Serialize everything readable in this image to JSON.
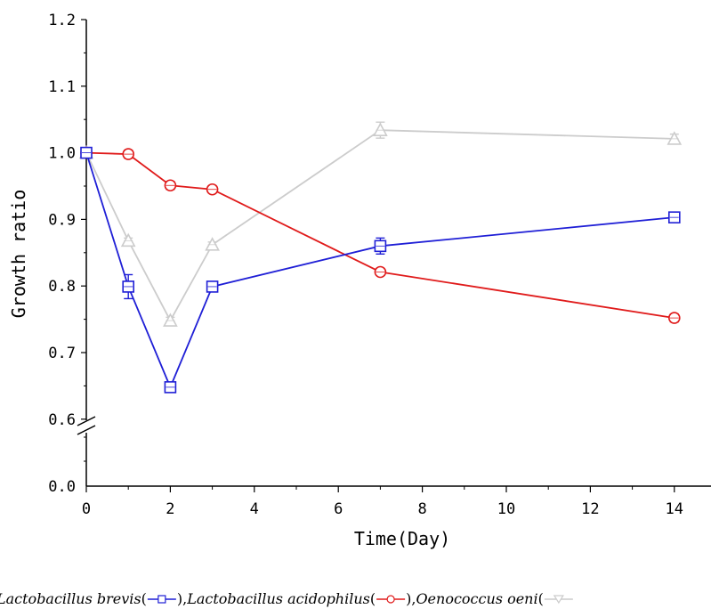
{
  "chart_data": {
    "type": "line",
    "xlabel": "Time(Day)",
    "ylabel": "Growth ratio",
    "xlim": [
      0,
      14.8
    ],
    "x_ticks": [
      "0",
      "2",
      "4",
      "6",
      "8",
      "10",
      "12",
      "14"
    ],
    "y_ticks_upper": [
      "0.6",
      "0.7",
      "0.8",
      "0.9",
      "1.0",
      "1.1",
      "1.2"
    ],
    "y_ticks_lower": [
      "0.0"
    ],
    "y_axis_break": [
      0.0,
      0.6
    ],
    "grid": false,
    "legend_position": "bottom",
    "series": [
      {
        "name": "Lactobacillus brevis",
        "color": "#1f1fd6",
        "marker": "square",
        "x": [
          0,
          1,
          2,
          3,
          7,
          14
        ],
        "y": [
          1.0,
          0.799,
          0.648,
          0.799,
          0.86,
          0.903
        ],
        "err": [
          0.003,
          0.018,
          0.003,
          0.005,
          0.012,
          0.005
        ]
      },
      {
        "name": "Lactobacillus acidophilus",
        "color": "#e01b1b",
        "marker": "circle",
        "x": [
          0,
          1,
          2,
          3,
          7,
          14
        ],
        "y": [
          1.0,
          0.998,
          0.951,
          0.945,
          0.821,
          0.752
        ],
        "err": [
          0.003,
          0.006,
          0.006,
          0.005,
          0.004,
          0.006
        ]
      },
      {
        "name": "Oenococcus oeni",
        "color": "#cccccc",
        "marker": "triangle",
        "x": [
          0,
          1,
          2,
          3,
          7,
          14
        ],
        "y": [
          1.0,
          0.868,
          0.748,
          0.862,
          1.034,
          1.021
        ],
        "err": [
          0.003,
          0.004,
          0.005,
          0.004,
          0.012,
          0.007
        ]
      }
    ]
  },
  "legend": {
    "brevis_name": "Lactobacillus brevis",
    "acidophilus_name": "Lactobacillus acidophilus",
    "oeni_name": "Oenococcus oeni"
  }
}
